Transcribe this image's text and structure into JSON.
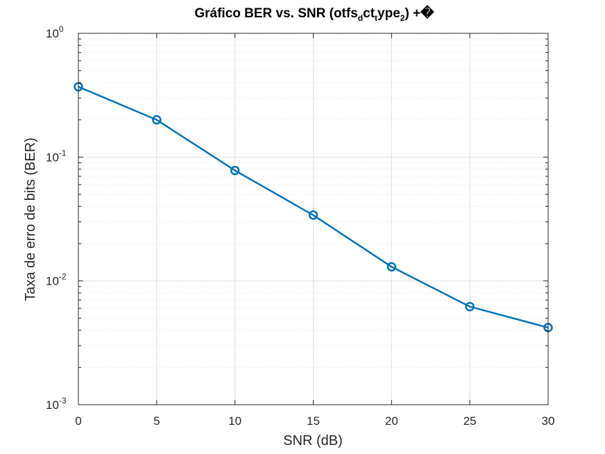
{
  "chart_data": {
    "type": "line",
    "title": {
      "main": "Gráfico BER vs. SNR (otfs",
      "sub1": "d",
      "mid1": "ct",
      "sub2": "t",
      "mid2": "ype",
      "sub3": "2",
      "tail": ") +�"
    },
    "xlabel": "SNR (dB)",
    "ylabel": "Taxa de erro de bits (BER)",
    "xlim": [
      0,
      30
    ],
    "ylim": [
      0.001,
      1
    ],
    "yscale": "log",
    "grid": true,
    "legend": "none",
    "x_ticks": [
      {
        "value": 0,
        "label": "0"
      },
      {
        "value": 5,
        "label": "5"
      },
      {
        "value": 10,
        "label": "10"
      },
      {
        "value": 15,
        "label": "15"
      },
      {
        "value": 20,
        "label": "20"
      },
      {
        "value": 25,
        "label": "25"
      },
      {
        "value": 30,
        "label": "30"
      }
    ],
    "y_ticks": [
      {
        "value": 1,
        "base": "10",
        "exp": "0"
      },
      {
        "value": 0.1,
        "base": "10",
        "exp": "-1"
      },
      {
        "value": 0.01,
        "base": "10",
        "exp": "-2"
      },
      {
        "value": 0.001,
        "base": "10",
        "exp": "-3"
      }
    ],
    "series": [
      {
        "x": [
          0,
          5,
          10,
          15,
          20,
          25,
          30
        ],
        "y": [
          0.37,
          0.2,
          0.078,
          0.034,
          0.013,
          0.0062,
          0.0042
        ],
        "color": "#0072BD",
        "marker": "circle"
      }
    ],
    "colors": {
      "axis": "#262626",
      "grid": "#dfdfdf",
      "minor_grid": "#ebebeb"
    }
  }
}
